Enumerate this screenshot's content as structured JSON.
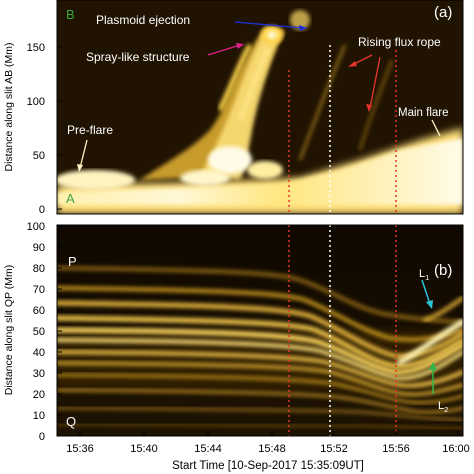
{
  "panel_a": {
    "label": "(a)",
    "corner_top": "B",
    "corner_bottom": "A",
    "ylabel": "Distance along slit AB (Mm)",
    "yticks": [
      "0",
      "50",
      "100",
      "150"
    ],
    "annotations": {
      "plasmoid": "Plasmoid ejection",
      "spray": "Spray-like structure",
      "rising": "Rising flux rope",
      "main_flare": "Main flare",
      "pre_flare": "Pre-flare"
    }
  },
  "panel_b": {
    "label": "(b)",
    "corner_top": "P",
    "corner_bottom": "Q",
    "ylabel": "Distance along slit QP (Mm)",
    "yticks": [
      "0",
      "10",
      "20",
      "30",
      "40",
      "50",
      "60",
      "70",
      "80",
      "90",
      "100"
    ],
    "loop_labels": {
      "l1": "L",
      "l1_sub": "1",
      "l2": "L",
      "l2_sub": "2"
    }
  },
  "xaxis": {
    "label": "Start Time [10-Sep-2017 15:35:09UT]",
    "ticks": [
      "15:36",
      "15:40",
      "15:44",
      "15:48",
      "15:52",
      "15:56",
      "16:00"
    ]
  },
  "colors": {
    "background": "#1a1000",
    "emission": "#ffd24a",
    "bright": "#fff6c8",
    "red_dashed": "#e8352b",
    "white_dashed": "#ffffff",
    "plasmoid_arrow": "#1d2fd8",
    "spray_arrow": "#e0208a",
    "rising_arrow": "#e8352b",
    "l1_arrow": "#2ec4d8",
    "l2_arrow": "#2fb84a",
    "corner_letter_green": "#3aa83a"
  }
}
